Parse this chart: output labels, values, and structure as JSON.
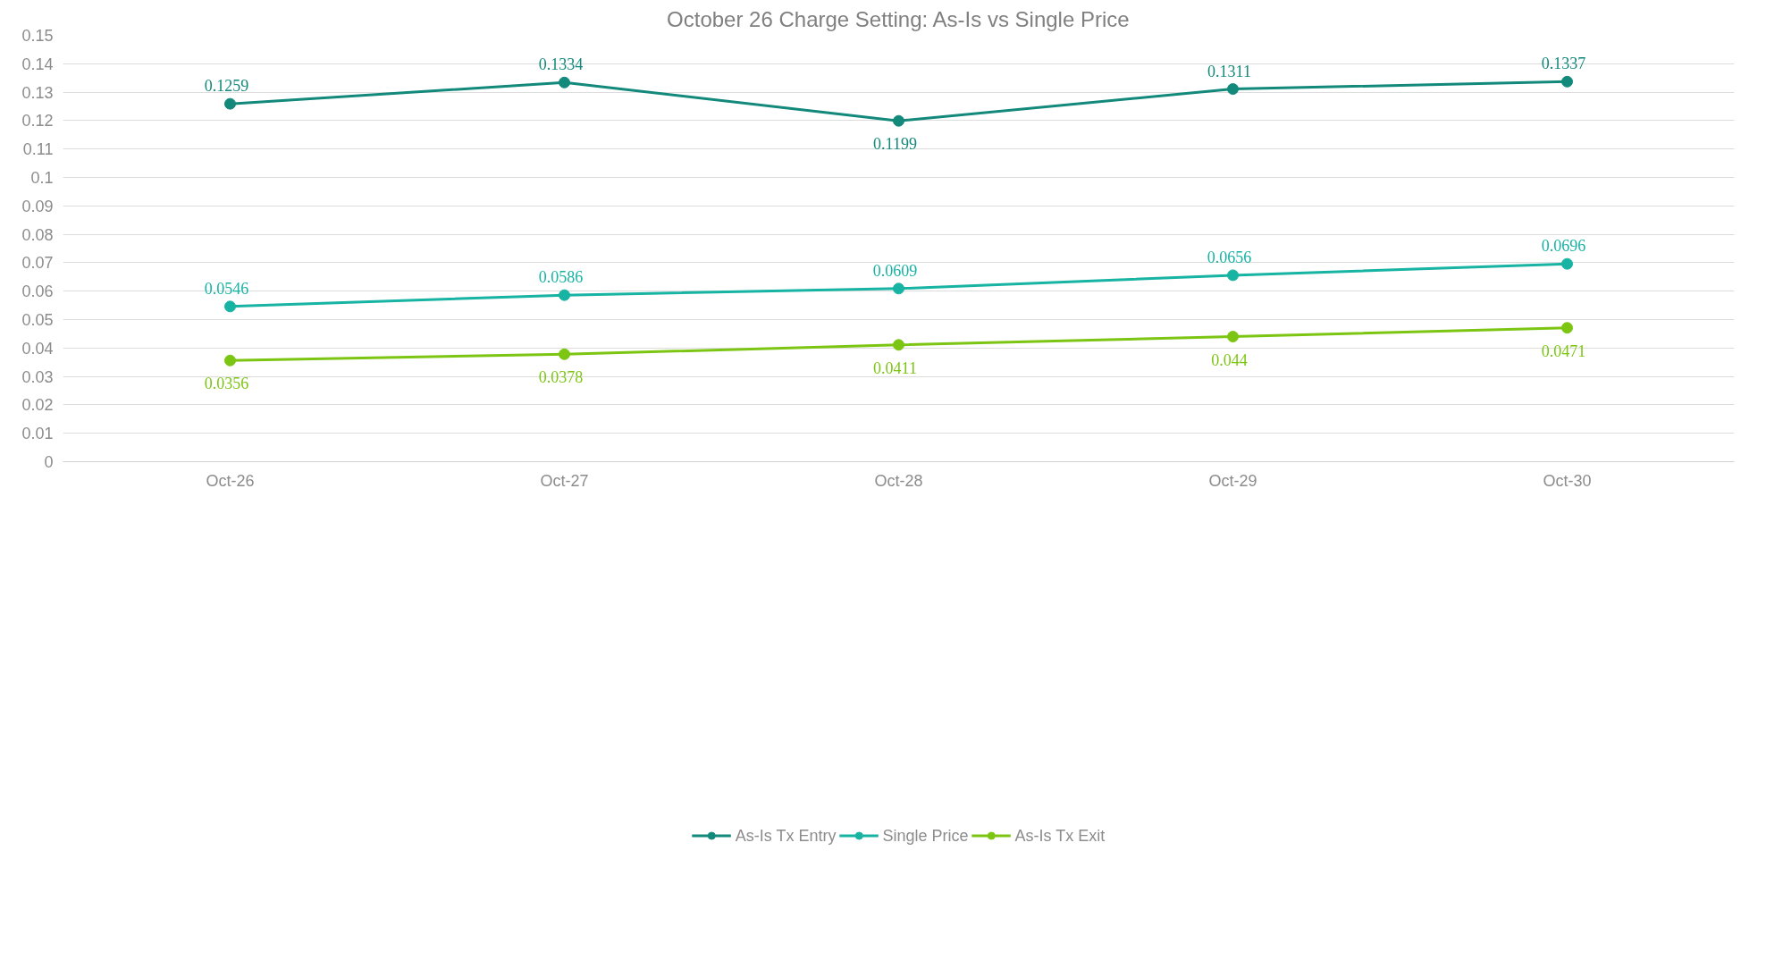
{
  "chart_data": {
    "type": "line",
    "title": "October 26 Charge Setting: As-Is vs Single Price",
    "categories": [
      "Oct-26",
      "Oct-27",
      "Oct-28",
      "Oct-29",
      "Oct-30"
    ],
    "series": [
      {
        "name": "As-Is Tx Entry",
        "color": "#12897b",
        "values": [
          0.1259,
          0.1334,
          0.1199,
          0.1311,
          0.1337
        ]
      },
      {
        "name": "Single Price",
        "color": "#17b3a3",
        "values": [
          0.0546,
          0.0586,
          0.0609,
          0.0656,
          0.0696
        ]
      },
      {
        "name": "As-Is Tx Exit",
        "color": "#7cc613",
        "values": [
          0.0356,
          0.0378,
          0.0411,
          0.044,
          0.0471
        ]
      }
    ],
    "ylim": [
      0,
      0.15
    ],
    "yticks": [
      0,
      0.01,
      0.02,
      0.03,
      0.04,
      0.05,
      0.06,
      0.07,
      0.08,
      0.09,
      0.1,
      0.11,
      0.12,
      0.13,
      0.14,
      0.15
    ],
    "grid": "y",
    "legend": "bottom",
    "marker": "circle",
    "line_style": "solid",
    "data_labels": true
  }
}
